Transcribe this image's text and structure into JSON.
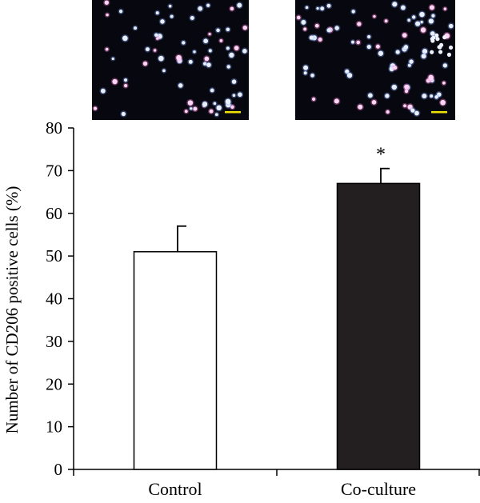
{
  "colors": {
    "control_bar": "#ffffff",
    "coculture_bar": "#231f20",
    "micrograph_bg": "#07070f",
    "nucleus_blue": "#7fa6ff",
    "cd206_pink": "#ff7fd6",
    "scale_bar": "#f0e000"
  },
  "micrographs": [
    {
      "name": "Control",
      "icon": "fluorescence-micrograph"
    },
    {
      "name": "Co-culture",
      "icon": "fluorescence-micrograph"
    }
  ],
  "chart_data": {
    "type": "bar",
    "categories": [
      "Control",
      "Co-culture"
    ],
    "values": [
      51,
      67
    ],
    "errors": [
      6,
      3.5
    ],
    "significance": [
      "",
      "*"
    ],
    "ylabel": "Number of CD206 positive cells (%)",
    "xlabel": "",
    "ylim": [
      0,
      80
    ],
    "yticks": [
      0,
      10,
      20,
      30,
      40,
      50,
      60,
      70,
      80
    ],
    "grid": false
  }
}
